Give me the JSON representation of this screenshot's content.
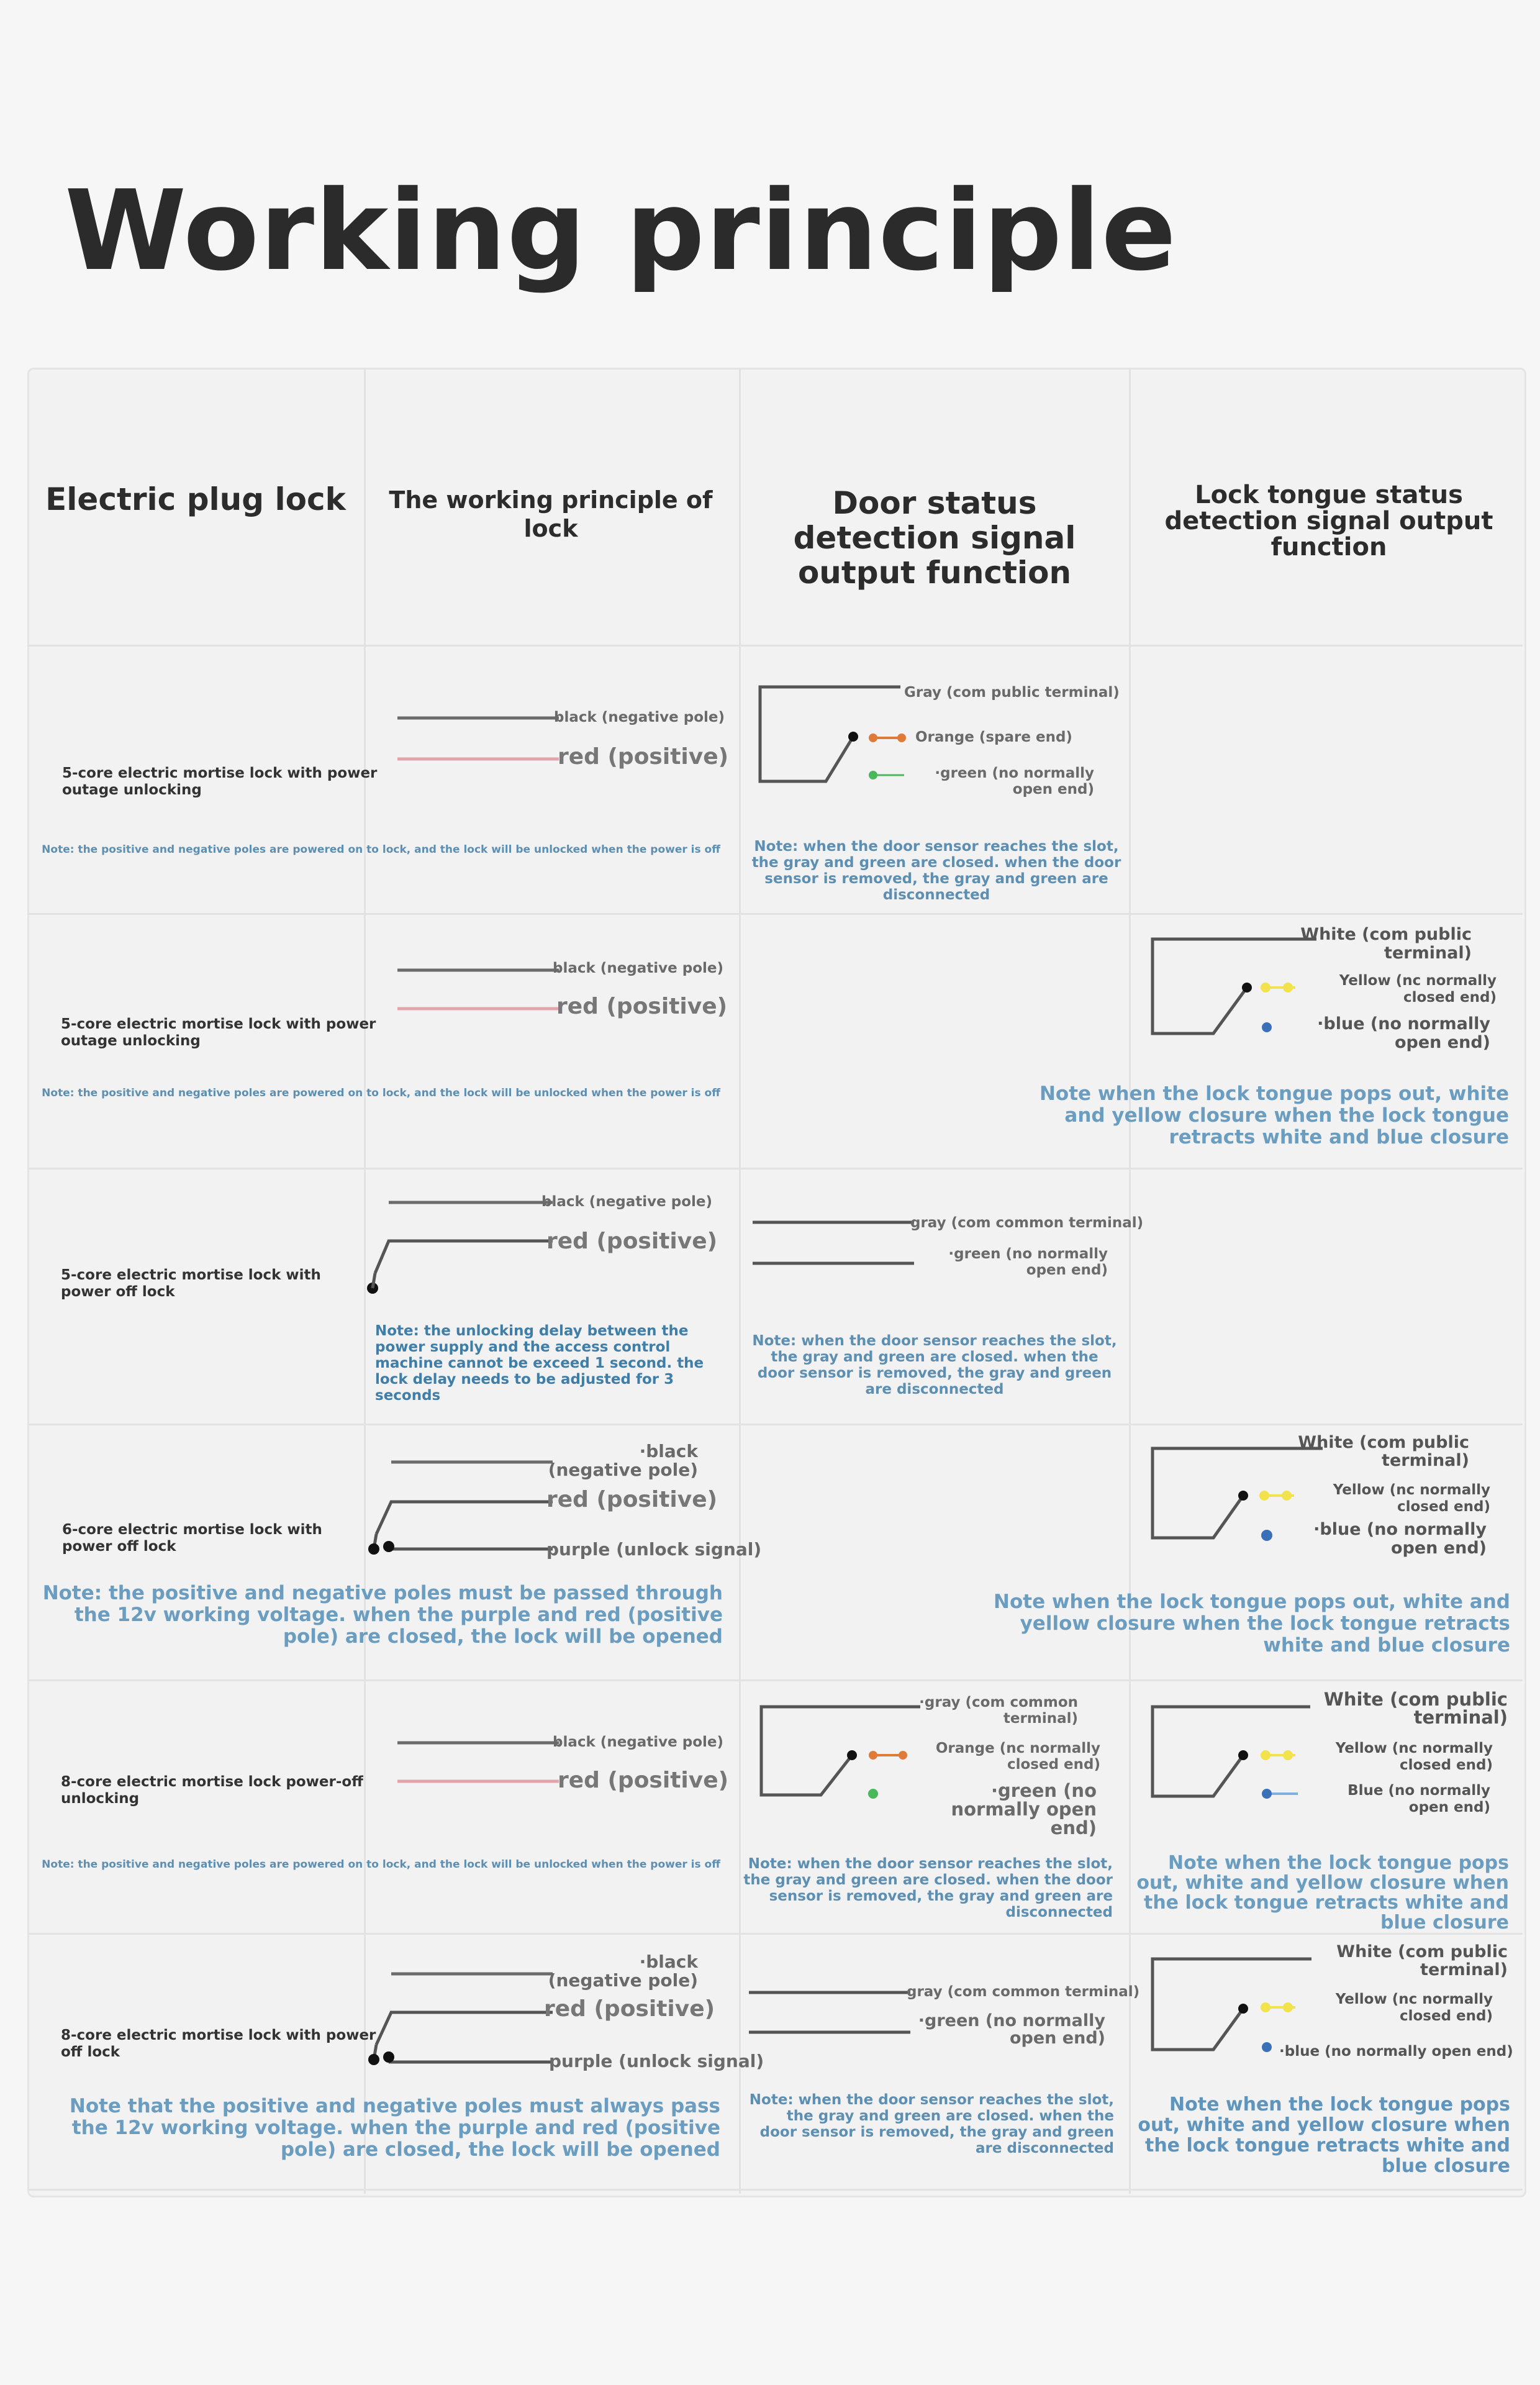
{
  "title": "Working principle",
  "headers": {
    "col1": "Electric plug lock",
    "col2": "The working principle of lock",
    "col3": "Door status detection signal output function",
    "col4": "Lock tongue status detection signal output function"
  },
  "colors": {
    "black_wire": "#6b6b6b",
    "red_wire": "#e3a3aa",
    "orange": "#e07a38",
    "green": "#48b85a",
    "yellow": "#f2e24c",
    "blue": "#3a70b8",
    "note_blue": "#5d8fb3"
  },
  "rows": [
    {
      "name": "5-core electric mortise lock with power outage unlocking",
      "wires": {
        "black": "black (negative pole)",
        "red": "red (positive)"
      },
      "note": "Note: the positive and negative poles are powered on to lock, and the lock will be unlocked when the power is off",
      "door": {
        "common": "Gray (com public terminal)",
        "spare": "Orange (spare end)",
        "no": "·green (no normally open end)",
        "note": "Note: when the door sensor reaches the slot, the gray and green are closed. when the door sensor is removed, the gray and green are disconnected"
      }
    },
    {
      "name": "5-core electric mortise lock with power outage unlocking",
      "wires": {
        "black": "black (negative pole)",
        "red": "red (positive)"
      },
      "note": "Note: the positive and negative poles are powered on to lock, and the lock will be unlocked when the power is off",
      "tongue": {
        "common": "White (com public terminal)",
        "nc": "Yellow (nc normally closed end)",
        "no": "·blue (no normally open end)",
        "note": "Note when the lock tongue pops out, white and yellow closure when the lock tongue retracts white and blue closure"
      }
    },
    {
      "name": "5-core electric mortise lock with power off lock",
      "wires": {
        "black": "black (negative pole)",
        "red": "red (positive)"
      },
      "note": "Note: the unlocking delay between the power supply and the access control machine cannot be exceed 1 second. the lock delay needs to be adjusted for 3 seconds",
      "door": {
        "common": "gray (com common terminal)",
        "no": "·green (no normally open end)",
        "note": "Note: when the door sensor reaches the slot, the gray and green are closed. when the door sensor is removed, the gray and green are disconnected"
      }
    },
    {
      "name": "6-core electric mortise lock with power off lock",
      "wires": {
        "black": "·black (negative pole)",
        "red": "red (positive)",
        "purple": "purple (unlock signal)"
      },
      "note": "Note: the positive and negative poles must be passed through the 12v working voltage. when the purple and red (positive pole) are closed, the lock will be opened",
      "tongue": {
        "common": "White (com public terminal)",
        "nc": "Yellow (nc normally closed end)",
        "no": "·blue (no normally open end)",
        "note": "Note when the lock tongue pops out, white and yellow closure when the lock tongue retracts white and blue closure"
      }
    },
    {
      "name": "8-core electric mortise lock power-off unlocking",
      "wires": {
        "black": "black (negative pole)",
        "red": "red (positive)"
      },
      "note": "Note: the positive and negative poles are powered on to lock, and the lock will be unlocked when the power is off",
      "door": {
        "common": "·gray (com common terminal)",
        "nc": "Orange (nc normally closed end)",
        "no": "·green (no normally open end)",
        "note": "Note: when the door sensor reaches the slot, the gray and green are closed. when the door sensor is removed, the gray and green are disconnected"
      },
      "tongue": {
        "common": "White (com public terminal)",
        "nc": "Yellow (nc normally closed end)",
        "no": "Blue (no normally open end)",
        "note": "Note when the lock tongue pops out, white and yellow closure when the lock tongue retracts white and blue closure"
      }
    },
    {
      "name": "8-core electric mortise lock with power off lock",
      "wires": {
        "black": "·black (negative pole)",
        "red": "red (positive)",
        "purple": "purple (unlock signal)"
      },
      "note": "Note that the positive and negative poles must always pass the 12v working voltage. when the purple and red (positive pole) are closed, the lock will be opened",
      "door": {
        "common": "gray (com common terminal)",
        "no": "·green (no normally open end)",
        "note": "Note: when the door sensor reaches the slot, the gray and green are closed. when the door sensor is removed, the gray and green are disconnected"
      },
      "tongue": {
        "common": "White (com public terminal)",
        "nc": "Yellow (nc normally closed end)",
        "no": "·blue (no normally open end)",
        "note": "Note when the lock tongue pops out, white and yellow closure when the lock tongue retracts white and blue closure"
      }
    }
  ]
}
